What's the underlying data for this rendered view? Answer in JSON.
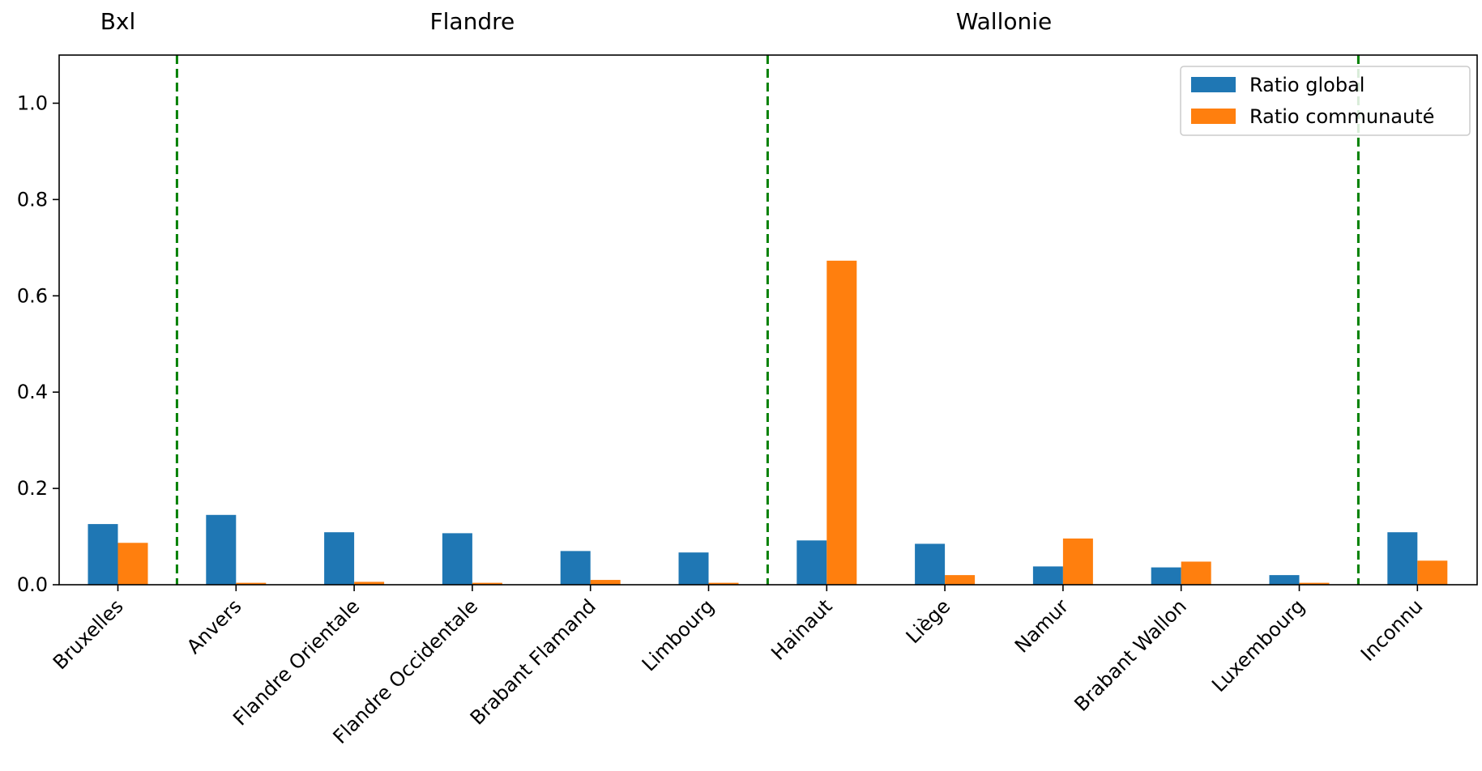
{
  "chart_data": {
    "type": "bar",
    "title": "",
    "xlabel": "",
    "ylabel": "",
    "ylim": [
      0,
      1.1
    ],
    "yticks": [
      0.0,
      0.2,
      0.4,
      0.6,
      0.8,
      1.0
    ],
    "ytick_labels": [
      "0.0",
      "0.2",
      "0.4",
      "0.6",
      "0.8",
      "1.0"
    ],
    "categories": [
      "Bruxelles",
      "Anvers",
      "Flandre Orientale",
      "Flandre Occidentale",
      "Brabant Flamand",
      "Limbourg",
      "Hainaut",
      "Liège",
      "Namur",
      "Brabant Wallon",
      "Luxembourg",
      "Inconnu"
    ],
    "series": [
      {
        "name": "Ratio global",
        "color": "#1f77b4",
        "values": [
          0.126,
          0.145,
          0.109,
          0.107,
          0.07,
          0.067,
          0.092,
          0.085,
          0.038,
          0.036,
          0.02,
          0.109
        ]
      },
      {
        "name": "Ratio communauté",
        "color": "#ff7f0e",
        "values": [
          0.087,
          0.004,
          0.006,
          0.004,
          0.01,
          0.004,
          0.673,
          0.02,
          0.096,
          0.048,
          0.004,
          0.05
        ]
      }
    ],
    "region_labels": [
      {
        "label": "Bxl",
        "center_index": 0
      },
      {
        "label": "Flandre",
        "center_index": 3
      },
      {
        "label": "Wallonie",
        "center_index": 7.5
      }
    ],
    "separators": {
      "after_indices": [
        0,
        5,
        10
      ],
      "color": "#008000",
      "style": "dashed"
    },
    "legend": {
      "placement": "top-right"
    },
    "grid": false
  }
}
